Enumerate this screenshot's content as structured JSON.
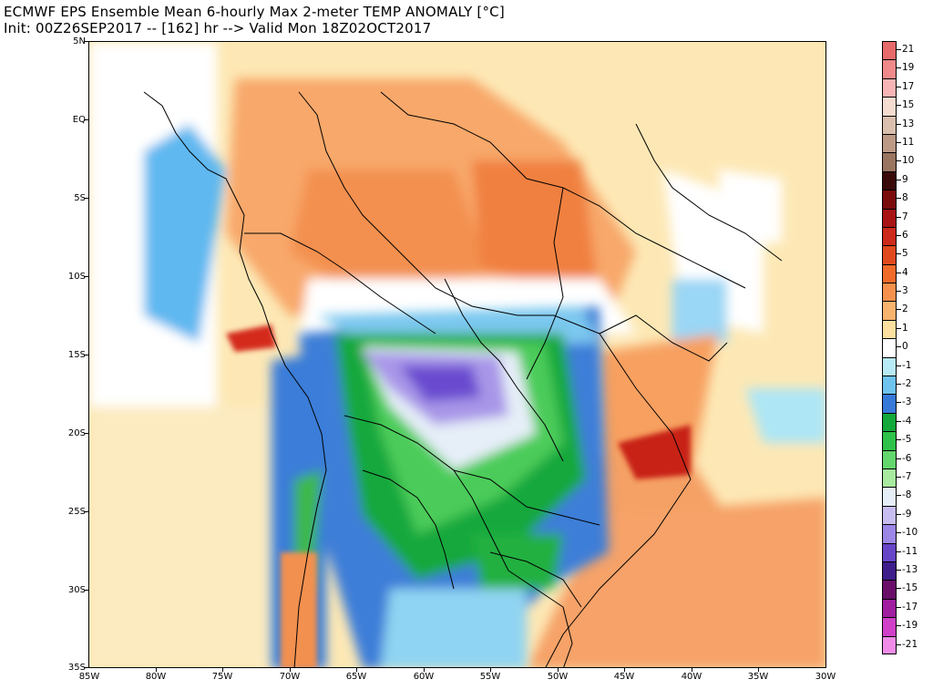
{
  "title": {
    "line1": "ECMWF EPS Ensemble Mean 6-hourly Max 2-meter TEMP ANOMALY [°C]",
    "line2": "Init: 00Z26SEP2017 -- [162] hr --> Valid Mon 18Z02OCT2017"
  },
  "map": {
    "lat_labels": [
      "5N",
      "EQ",
      "5S",
      "10S",
      "15S",
      "20S",
      "25S",
      "30S",
      "35S"
    ],
    "lon_labels": [
      "85W",
      "80W",
      "75W",
      "70W",
      "65W",
      "60W",
      "55W",
      "50W",
      "45W",
      "40W",
      "35W",
      "30W"
    ]
  },
  "colorbar": {
    "entries": [
      {
        "label": "21",
        "color": "#e66a6a"
      },
      {
        "label": "19",
        "color": "#f08a8a"
      },
      {
        "label": "17",
        "color": "#f7b4b4"
      },
      {
        "label": "15",
        "color": "#f5dcd0"
      },
      {
        "label": "13",
        "color": "#d9bfae"
      },
      {
        "label": "11",
        "color": "#bb9a86"
      },
      {
        "label": "10",
        "color": "#9a7561"
      },
      {
        "label": "9",
        "color": "#3a0a0a"
      },
      {
        "label": "8",
        "color": "#7a0c0c"
      },
      {
        "label": "7",
        "color": "#a81414"
      },
      {
        "label": "6",
        "color": "#cc2a1a"
      },
      {
        "label": "5",
        "color": "#e04a1e"
      },
      {
        "label": "4",
        "color": "#f06a2a"
      },
      {
        "label": "3",
        "color": "#f5914d"
      },
      {
        "label": "2",
        "color": "#f8b46f"
      },
      {
        "label": "1",
        "color": "#fbe0a0"
      },
      {
        "label": "0",
        "color": "#ffffff"
      },
      {
        "label": "-1",
        "color": "#b8eaf5"
      },
      {
        "label": "-2",
        "color": "#6ec3ef"
      },
      {
        "label": "-3",
        "color": "#3779d8"
      },
      {
        "label": "-4",
        "color": "#12a83a"
      },
      {
        "label": "-5",
        "color": "#2ec24a"
      },
      {
        "label": "-6",
        "color": "#64d66e"
      },
      {
        "label": "-7",
        "color": "#a8eaa0"
      },
      {
        "label": "-8",
        "color": "#e6eff8"
      },
      {
        "label": "-9",
        "color": "#c8bdf0"
      },
      {
        "label": "-10",
        "color": "#9c86e6"
      },
      {
        "label": "-11",
        "color": "#6846c8"
      },
      {
        "label": "-13",
        "color": "#3e1e8a"
      },
      {
        "label": "-15",
        "color": "#6a0e6a"
      },
      {
        "label": "-17",
        "color": "#a01ea0"
      },
      {
        "label": "-19",
        "color": "#d040c8"
      },
      {
        "label": "-21",
        "color": "#f08ce8"
      }
    ]
  }
}
